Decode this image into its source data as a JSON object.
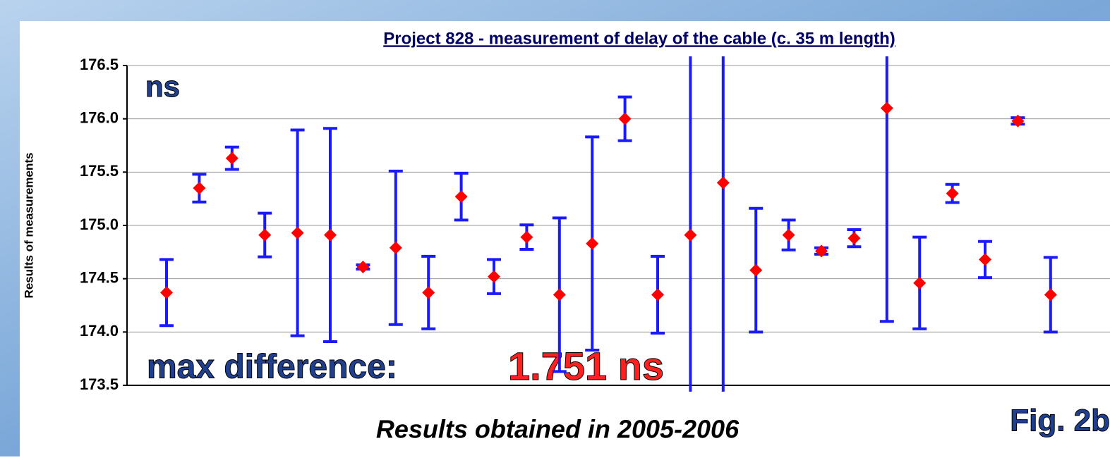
{
  "chart_data": {
    "type": "errorbar",
    "title": "Project 828 - measurement of delay of the cable (c. 35 m length)",
    "ylabel": "Results of measurements",
    "unit_note": "ns",
    "annotation_label": "max difference:",
    "annotation_value": "1.751 ns",
    "xlabel": "Results obtained in 2005-2006",
    "figure_label": "Fig. 2b",
    "categories": [
      null,
      null,
      null,
      null,
      null,
      null,
      null,
      null,
      null,
      null,
      null,
      null,
      null,
      null,
      null,
      null,
      null,
      null,
      null,
      null,
      null,
      null,
      null,
      null,
      null,
      null,
      null,
      null
    ],
    "values": [
      174.37,
      175.35,
      175.63,
      174.91,
      174.93,
      174.91,
      174.61,
      174.79,
      174.37,
      175.27,
      174.52,
      174.89,
      174.35,
      174.83,
      176.0,
      174.35,
      174.91,
      175.4,
      174.58,
      174.91,
      174.76,
      174.88,
      176.1,
      174.46,
      175.3,
      174.68,
      175.98,
      174.35
    ],
    "errors": [
      0.31,
      0.13,
      0.105,
      0.205,
      0.965,
      1.0,
      0.02,
      0.72,
      0.34,
      0.22,
      0.16,
      0.115,
      0.72,
      1.0,
      0.205,
      0.36,
      2.0,
      2.0,
      0.58,
      0.14,
      0.03,
      0.08,
      2.0,
      0.43,
      0.085,
      0.17,
      0.03,
      0.35
    ],
    "marker_color": "#ff0000",
    "error_color": "#1a1aff",
    "ylim": [
      173.5,
      176.5
    ],
    "yticks": [
      173.5,
      {
        "value": 174,
        "label": "174.0"
      },
      174.5,
      {
        "value": 175,
        "label": "175.0"
      },
      175.5,
      {
        "value": 176,
        "label": "176.0"
      },
      176.5
    ],
    "grid": true
  }
}
